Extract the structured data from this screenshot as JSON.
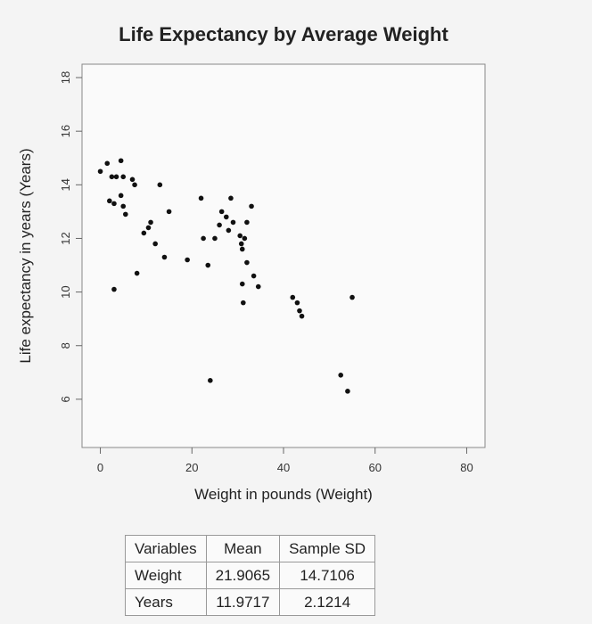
{
  "chart_data": {
    "type": "scatter",
    "title": "Life Expectancy by Average Weight",
    "xlabel": "Weight in pounds (Weight)",
    "ylabel": "Life expectancy in years (Years)",
    "xlim": [
      -4,
      84
    ],
    "ylim": [
      4.2,
      18.5
    ],
    "xticks": [
      0,
      20,
      40,
      60,
      80
    ],
    "yticks": [
      6,
      8,
      10,
      12,
      14,
      16,
      18
    ],
    "grid": false,
    "points": [
      {
        "x": 0,
        "y": 14.5
      },
      {
        "x": 1.5,
        "y": 14.8
      },
      {
        "x": 2.5,
        "y": 14.3
      },
      {
        "x": 3.5,
        "y": 14.3
      },
      {
        "x": 4.5,
        "y": 14.9
      },
      {
        "x": 5,
        "y": 14.3
      },
      {
        "x": 7,
        "y": 14.2
      },
      {
        "x": 7.5,
        "y": 14.0
      },
      {
        "x": 3,
        "y": 10.1
      },
      {
        "x": 2,
        "y": 13.4
      },
      {
        "x": 3,
        "y": 13.3
      },
      {
        "x": 4.5,
        "y": 13.6
      },
      {
        "x": 5,
        "y": 13.2
      },
      {
        "x": 5.5,
        "y": 12.9
      },
      {
        "x": 8,
        "y": 10.7
      },
      {
        "x": 9.5,
        "y": 12.2
      },
      {
        "x": 10.5,
        "y": 12.4
      },
      {
        "x": 11,
        "y": 12.6
      },
      {
        "x": 12,
        "y": 11.8
      },
      {
        "x": 13,
        "y": 14.0
      },
      {
        "x": 14,
        "y": 11.3
      },
      {
        "x": 15,
        "y": 13.0
      },
      {
        "x": 19,
        "y": 11.2
      },
      {
        "x": 22,
        "y": 13.5
      },
      {
        "x": 22.5,
        "y": 12.0
      },
      {
        "x": 23.5,
        "y": 11.0
      },
      {
        "x": 24,
        "y": 6.7
      },
      {
        "x": 25,
        "y": 12.0
      },
      {
        "x": 26,
        "y": 12.5
      },
      {
        "x": 26.5,
        "y": 13.0
      },
      {
        "x": 27.5,
        "y": 12.8
      },
      {
        "x": 28,
        "y": 12.3
      },
      {
        "x": 28.5,
        "y": 13.5
      },
      {
        "x": 29,
        "y": 12.6
      },
      {
        "x": 30.5,
        "y": 12.1
      },
      {
        "x": 30.8,
        "y": 11.8
      },
      {
        "x": 31,
        "y": 11.6
      },
      {
        "x": 31,
        "y": 10.3
      },
      {
        "x": 31.2,
        "y": 9.6
      },
      {
        "x": 31.5,
        "y": 12.0
      },
      {
        "x": 32,
        "y": 11.1
      },
      {
        "x": 32,
        "y": 12.6
      },
      {
        "x": 33,
        "y": 13.2
      },
      {
        "x": 33.5,
        "y": 10.6
      },
      {
        "x": 34.5,
        "y": 10.2
      },
      {
        "x": 42,
        "y": 9.8
      },
      {
        "x": 43,
        "y": 9.6
      },
      {
        "x": 43.5,
        "y": 9.3
      },
      {
        "x": 44,
        "y": 9.1
      },
      {
        "x": 55,
        "y": 9.8
      },
      {
        "x": 52.5,
        "y": 6.9
      },
      {
        "x": 54,
        "y": 6.3
      }
    ]
  },
  "table": {
    "headers": [
      "Variables",
      "Mean",
      "Sample SD"
    ],
    "rows": [
      [
        "Weight",
        "21.9065",
        "14.7106"
      ],
      [
        "Years",
        "11.9717",
        "2.1214"
      ]
    ]
  }
}
